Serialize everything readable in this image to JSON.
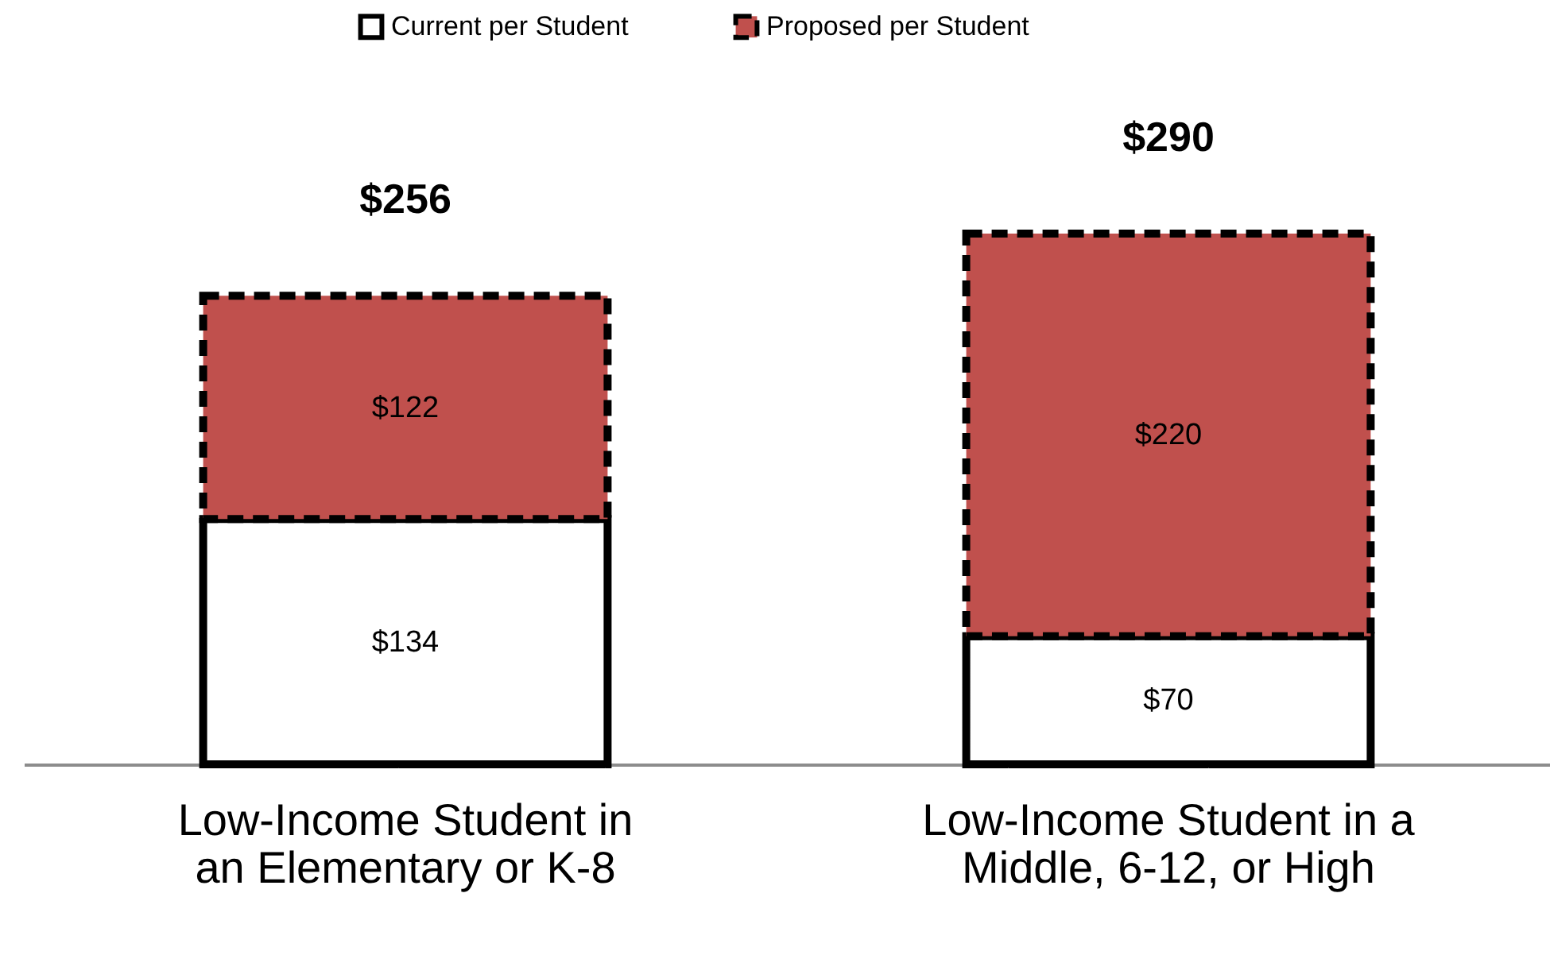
{
  "chart_data": {
    "type": "bar",
    "stacked": true,
    "categories": [
      "Low-Income Student in an Elementary or K-8",
      "Low-Income Student in a Middle, 6-12, or High"
    ],
    "series": [
      {
        "name": "Current per Student",
        "color": "#ffffff",
        "line_style": "solid",
        "values": [
          134,
          70
        ],
        "value_labels": [
          "$134",
          "$70"
        ]
      },
      {
        "name": "Proposed per Student",
        "color": "#c0504d",
        "line_style": "dashed",
        "values": [
          122,
          220
        ],
        "value_labels": [
          "$122",
          "$220"
        ]
      }
    ],
    "totals": [
      "$256",
      "$290"
    ],
    "legend": "top",
    "grid": false
  }
}
